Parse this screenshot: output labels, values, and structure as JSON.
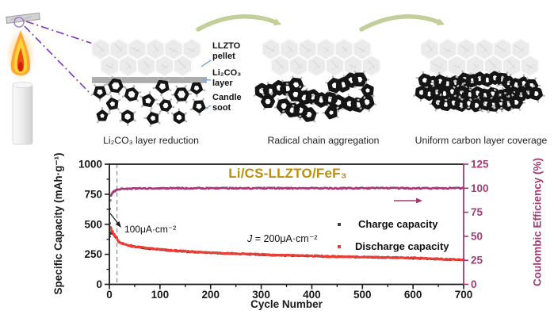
{
  "schematic": {
    "component_labels": {
      "llzto_line1": "LLZTO",
      "llzto_line2": "pellet",
      "li2co3_line1": "Li₂CO₃",
      "li2co3_line2": "layer",
      "soot_line1": "Candle",
      "soot_line2": "soot"
    },
    "step_captions": [
      "Li₂CO₃ layer reduction",
      "Radical chain aggregation",
      "Uniform carbon layer coverage"
    ]
  },
  "chart_data": {
    "type": "scatter",
    "title": "Li/CS-LLZTO/FeF₃",
    "title_color": "#bc8e0c",
    "xlabel": "Cycle Number",
    "ylabel_left": "Specific Capacity (mAh·g⁻¹)",
    "ylabel_right": "Coulombic Efficiency (%)",
    "xlim": [
      0,
      700
    ],
    "ylim_left": [
      0,
      1000
    ],
    "ylim_right": [
      0,
      125
    ],
    "x_ticks": [
      0,
      100,
      200,
      300,
      400,
      500,
      600,
      700
    ],
    "x_minor_step": 50,
    "y_ticks_left": [
      0,
      250,
      500,
      750,
      1000
    ],
    "y_ticks_right": [
      0,
      25,
      50,
      75,
      100,
      125
    ],
    "grid": false,
    "rate_change_cycle": 15,
    "annotations": {
      "rate1": "100μA·cm⁻²",
      "rate2_var": "J",
      "rate2_rest": " = 200μA·cm⁻²"
    },
    "axis_colors": {
      "left": "#1a1a1a",
      "right": "#a23a76"
    },
    "legend": [
      {
        "label": "Charge capacity",
        "color": "#3f3f3f"
      },
      {
        "label": "Discharge capacity",
        "color": "#ee3c34"
      }
    ],
    "series": [
      {
        "name": "Charge capacity",
        "axis": "left",
        "color": "#3f3f3f",
        "points": [
          [
            1,
            400
          ],
          [
            2,
            420
          ],
          [
            3,
            432
          ],
          [
            5,
            428
          ],
          [
            8,
            415
          ],
          [
            10,
            405
          ],
          [
            12,
            396
          ],
          [
            15,
            383
          ],
          [
            16,
            366
          ],
          [
            18,
            357
          ],
          [
            20,
            349
          ],
          [
            25,
            339
          ],
          [
            30,
            332
          ],
          [
            40,
            321
          ],
          [
            50,
            313
          ],
          [
            60,
            307
          ],
          [
            75,
            299
          ],
          [
            100,
            289
          ],
          [
            125,
            280
          ],
          [
            150,
            273
          ],
          [
            175,
            267
          ],
          [
            200,
            262
          ],
          [
            250,
            254
          ],
          [
            300,
            247
          ],
          [
            350,
            240
          ],
          [
            400,
            235
          ],
          [
            450,
            230
          ],
          [
            500,
            226
          ],
          [
            550,
            222
          ],
          [
            600,
            218
          ],
          [
            650,
            210
          ],
          [
            700,
            203
          ]
        ]
      },
      {
        "name": "Discharge capacity",
        "axis": "left",
        "color": "#ee3c34",
        "points": [
          [
            1,
            505
          ],
          [
            2,
            482
          ],
          [
            3,
            465
          ],
          [
            5,
            446
          ],
          [
            8,
            424
          ],
          [
            10,
            412
          ],
          [
            12,
            400
          ],
          [
            15,
            386
          ],
          [
            16,
            368
          ],
          [
            18,
            359
          ],
          [
            20,
            351
          ],
          [
            25,
            341
          ],
          [
            30,
            334
          ],
          [
            40,
            323
          ],
          [
            50,
            315
          ],
          [
            60,
            309
          ],
          [
            75,
            301
          ],
          [
            100,
            291
          ],
          [
            125,
            282
          ],
          [
            150,
            275
          ],
          [
            175,
            269
          ],
          [
            200,
            264
          ],
          [
            250,
            256
          ],
          [
            300,
            249
          ],
          [
            350,
            242
          ],
          [
            400,
            237
          ],
          [
            450,
            232
          ],
          [
            500,
            228
          ],
          [
            550,
            224
          ],
          [
            600,
            220
          ],
          [
            650,
            212
          ],
          [
            700,
            205
          ]
        ]
      },
      {
        "name": "Coulombic efficiency",
        "axis": "right",
        "color": "#a23a76",
        "points": [
          [
            1,
            79
          ],
          [
            2,
            87
          ],
          [
            3,
            92
          ],
          [
            5,
            94.5
          ],
          [
            8,
            96
          ],
          [
            10,
            96.8
          ],
          [
            12,
            97.3
          ],
          [
            15,
            98
          ],
          [
            20,
            99
          ],
          [
            30,
            99.4
          ],
          [
            50,
            99.7
          ],
          [
            100,
            99.9
          ],
          [
            200,
            100
          ],
          [
            300,
            100
          ],
          [
            400,
            100
          ],
          [
            500,
            100
          ],
          [
            600,
            100
          ],
          [
            700,
            100
          ]
        ]
      }
    ]
  }
}
